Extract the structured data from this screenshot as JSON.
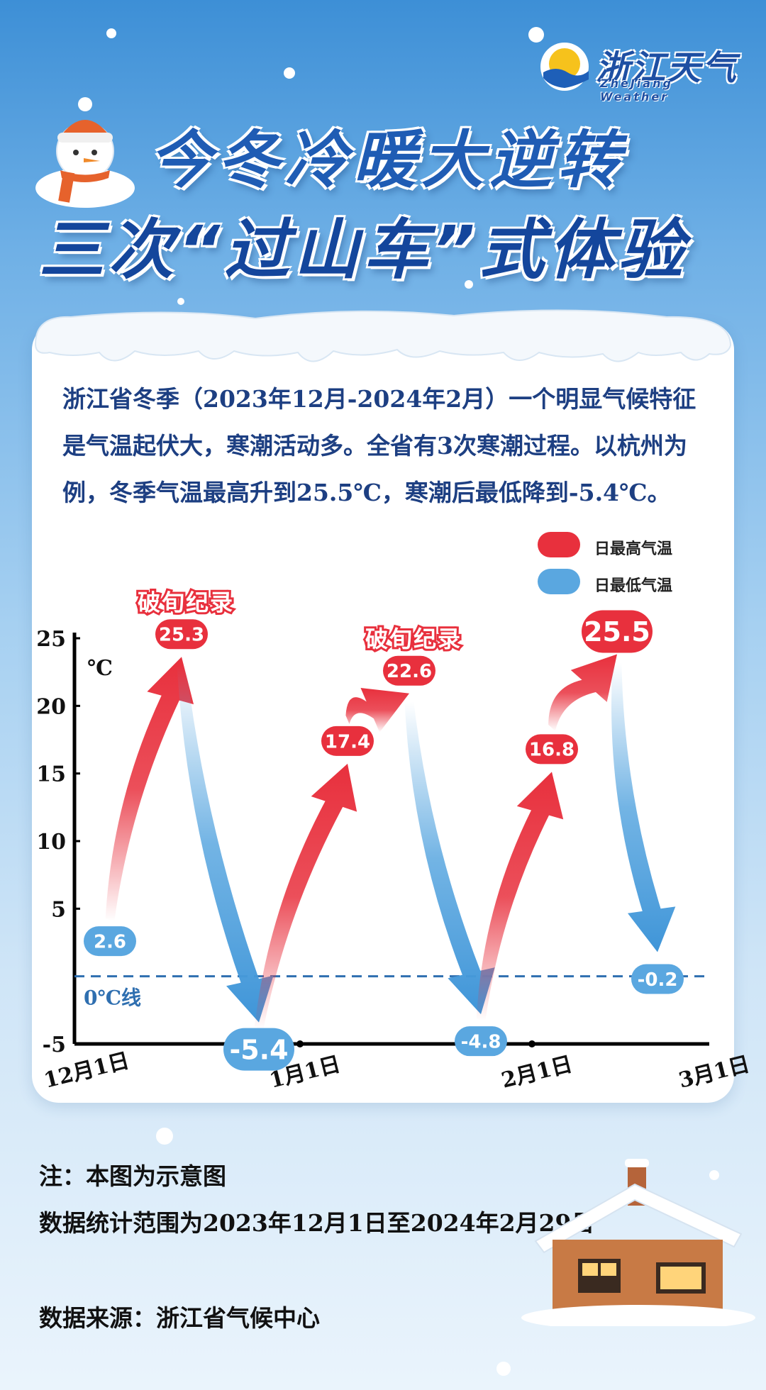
{
  "brand": {
    "name": "浙江天气",
    "sub": "ZheJiang Weather"
  },
  "title": {
    "line1": "今冬冷暖大逆转",
    "line2": "三次“过山车”式体验"
  },
  "description": "浙江省冬季（2023年12月-2024年2月）一个明显气候特征是气温起伏大，寒潮活动多。全省有3次寒潮过程。以杭州为例，冬季气温最高升到25.5℃，寒潮后最低降到-5.4℃。",
  "legend": {
    "high": "日最高气温",
    "low": "日最低气温",
    "high_color": "#e8303d",
    "low_color": "#5aa7e0"
  },
  "chart_data": {
    "type": "line",
    "unit": "℃",
    "ylim": [
      -5,
      25
    ],
    "yticks": [
      -5,
      5,
      10,
      15,
      20,
      25
    ],
    "x_labels": [
      "12月1日",
      "1月1日",
      "2月1日",
      "3月1日"
    ],
    "zero_line_label": "0℃线",
    "record_label": "破旬纪录",
    "points": [
      {
        "label": "2.6",
        "value": 2.6,
        "kind": "low"
      },
      {
        "label": "25.3",
        "value": 25.3,
        "kind": "high",
        "record": true
      },
      {
        "label": "-5.4",
        "value": -5.4,
        "kind": "low"
      },
      {
        "label": "17.4",
        "value": 17.4,
        "kind": "high"
      },
      {
        "label": "22.6",
        "value": 22.6,
        "kind": "high",
        "record": true
      },
      {
        "label": "-4.8",
        "value": -4.8,
        "kind": "low"
      },
      {
        "label": "16.8",
        "value": 16.8,
        "kind": "high"
      },
      {
        "label": "25.5",
        "value": 25.5,
        "kind": "high"
      },
      {
        "label": "-0.2",
        "value": -0.2,
        "kind": "low"
      }
    ]
  },
  "notes": {
    "note1": "注：本图为示意图",
    "note2": "数据统计范围为2023年12月1日至2024年2月29日",
    "source": "数据来源：浙江省气候中心"
  }
}
